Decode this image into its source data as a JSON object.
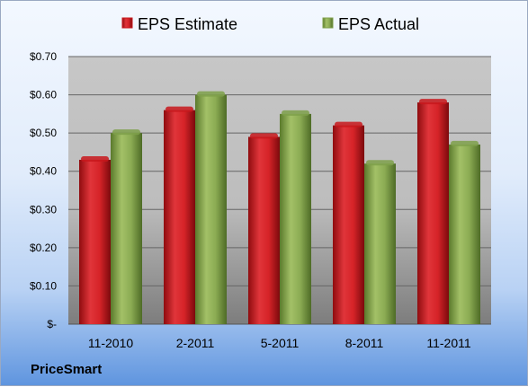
{
  "company": "PriceSmart",
  "chart_data": {
    "type": "bar",
    "categories": [
      "11-2010",
      "2-2011",
      "5-2011",
      "8-2011",
      "11-2011"
    ],
    "series": [
      {
        "name": "EPS Estimate",
        "values": [
          0.43,
          0.56,
          0.49,
          0.52,
          0.58
        ],
        "color": "#c8181c"
      },
      {
        "name": "EPS Actual",
        "values": [
          0.5,
          0.6,
          0.55,
          0.42,
          0.47
        ],
        "color": "#7ea04a"
      }
    ],
    "yticks": [
      0,
      0.1,
      0.2,
      0.3,
      0.4,
      0.5,
      0.6,
      0.7
    ],
    "yticklabels": [
      "$-",
      "$0.10",
      "$0.20",
      "$0.30",
      "$0.40",
      "$0.50",
      "$0.60",
      "$0.70"
    ],
    "ylim": [
      0,
      0.7
    ],
    "grid": true,
    "legend": "top"
  }
}
